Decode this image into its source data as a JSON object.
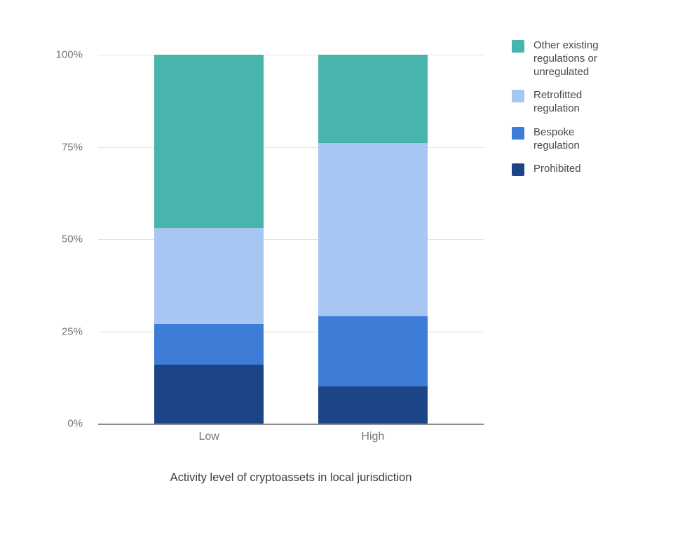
{
  "chart_data": {
    "type": "bar",
    "stacked": true,
    "title": "",
    "xlabel": "Activity level of cryptoassets in local jurisdiction",
    "ylabel": "",
    "categories": [
      "Low",
      "High"
    ],
    "series": [
      {
        "name": "Prohibited",
        "color": "#1c4587",
        "values": [
          16,
          10
        ]
      },
      {
        "name": "Bespoke regulation",
        "color": "#3d7dd8",
        "values": [
          11,
          19
        ]
      },
      {
        "name": "Retrofitted regulation",
        "color": "#a7c7f2",
        "values": [
          26,
          47
        ]
      },
      {
        "name": "Other existing regulations or unregulated",
        "color": "#48b5ad",
        "values": [
          47,
          24
        ]
      }
    ],
    "ylim": [
      0,
      100
    ],
    "y_ticks": [
      "0%",
      "25%",
      "50%",
      "75%",
      "100%"
    ],
    "grid": true,
    "legend_position": "right",
    "legend": [
      {
        "label": "Other existing regulations or unregulated",
        "color": "#48b5ad"
      },
      {
        "label": "Retrofitted regulation",
        "color": "#a7c7f2"
      },
      {
        "label": "Bespoke regulation",
        "color": "#3d7dd8"
      },
      {
        "label": "Prohibited",
        "color": "#1c4587"
      }
    ]
  }
}
